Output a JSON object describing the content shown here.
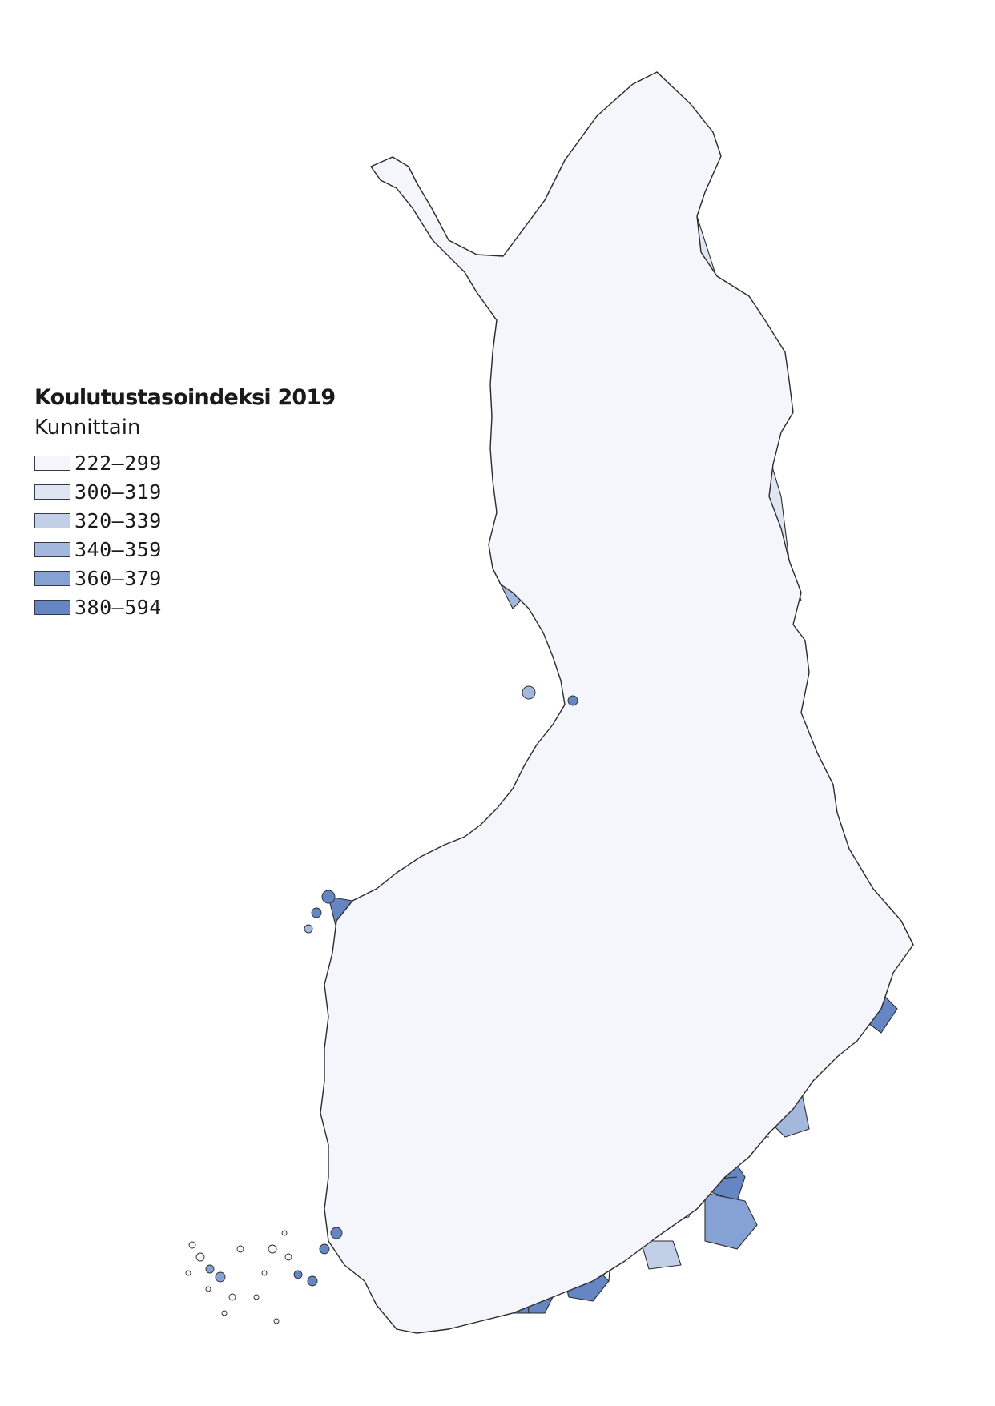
{
  "legend": {
    "title": "Koulutustasoindeksi 2019",
    "subtitle": "Kunnittain",
    "classes": [
      {
        "label": "222–299",
        "range": [
          222,
          299
        ],
        "color": "#f4f6fb"
      },
      {
        "label": "300–319",
        "range": [
          300,
          319
        ],
        "color": "#dfe5f1"
      },
      {
        "label": "320–339",
        "range": [
          320,
          339
        ],
        "color": "#c2d0e7"
      },
      {
        "label": "340–359",
        "range": [
          340,
          359
        ],
        "color": "#a4b8dd"
      },
      {
        "label": "360–379",
        "range": [
          360,
          379
        ],
        "color": "#86a1d3"
      },
      {
        "label": "380–594",
        "range": [
          380,
          594
        ],
        "color": "#6585c3"
      }
    ]
  },
  "map": {
    "type": "choropleth",
    "region": "Finland",
    "unit": "municipality",
    "border_color": "#2b2b2b"
  }
}
